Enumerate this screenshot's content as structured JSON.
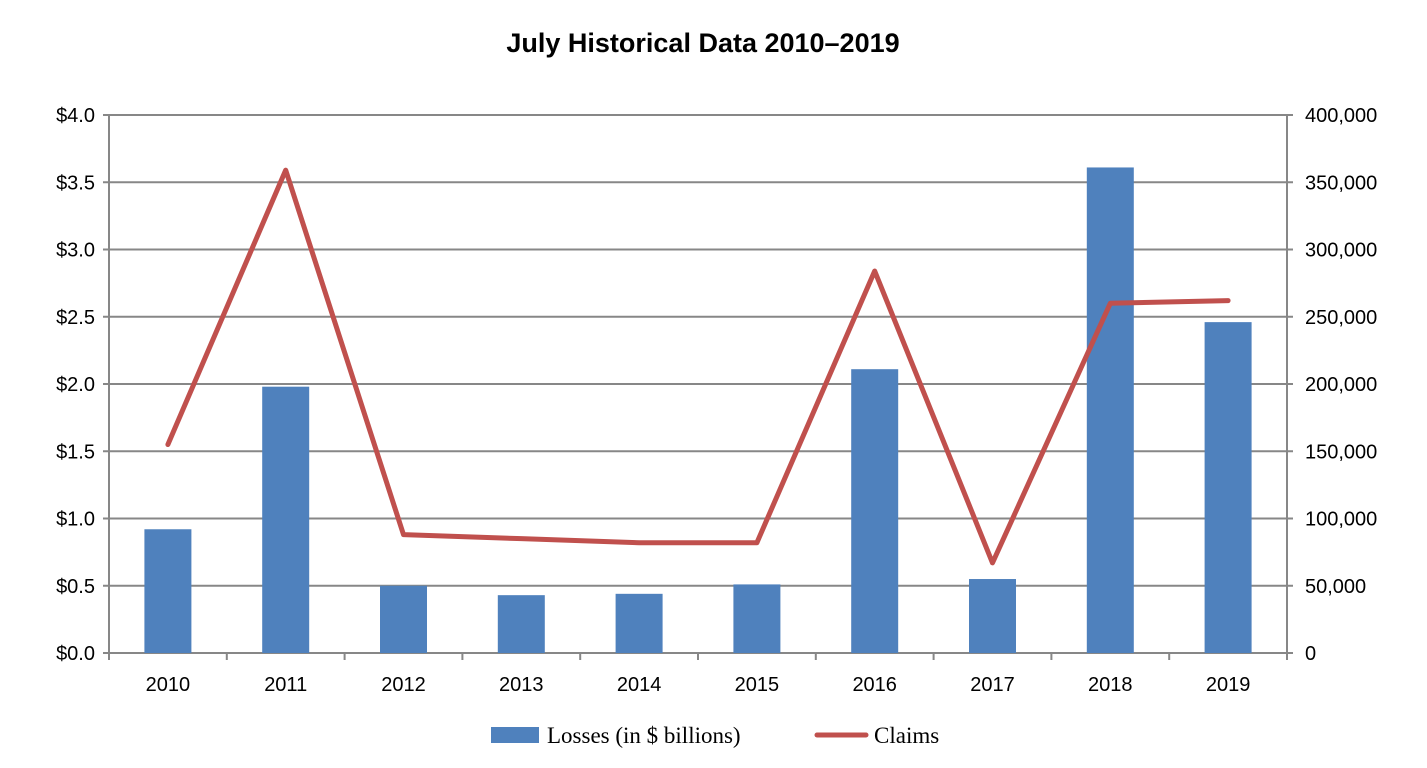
{
  "chart_data": {
    "type": "bar+line",
    "title": "July Historical Data 2010–2019",
    "categories": [
      "2010",
      "2011",
      "2012",
      "2013",
      "2014",
      "2015",
      "2016",
      "2017",
      "2018",
      "2019"
    ],
    "series": [
      {
        "name": "Losses (in $ billions)",
        "type": "bar",
        "axis": "left",
        "color": "#4F81BD",
        "values": [
          0.92,
          1.98,
          0.5,
          0.43,
          0.44,
          0.51,
          2.11,
          0.55,
          3.61,
          2.46
        ]
      },
      {
        "name": "Claims",
        "type": "line",
        "axis": "right",
        "color": "#C0504D",
        "values": [
          155000,
          359000,
          88000,
          85000,
          82000,
          82000,
          284000,
          67000,
          260000,
          262000
        ]
      }
    ],
    "y_left": {
      "ylim": [
        0,
        4.0
      ],
      "ticks": [
        "$0.0",
        "$0.5",
        "$1.0",
        "$1.5",
        "$2.0",
        "$2.5",
        "$3.0",
        "$3.5",
        "$4.0"
      ],
      "tick_values": [
        0,
        0.5,
        1,
        1.5,
        2,
        2.5,
        3,
        3.5,
        4
      ]
    },
    "y_right": {
      "ylim": [
        0,
        400000
      ],
      "ticks": [
        "0",
        "50,000",
        "100,000",
        "150,000",
        "200,000",
        "250,000",
        "300,000",
        "350,000",
        "400,000"
      ]
    },
    "grid": true,
    "legend": "bottom",
    "gridColor": "#878787"
  }
}
